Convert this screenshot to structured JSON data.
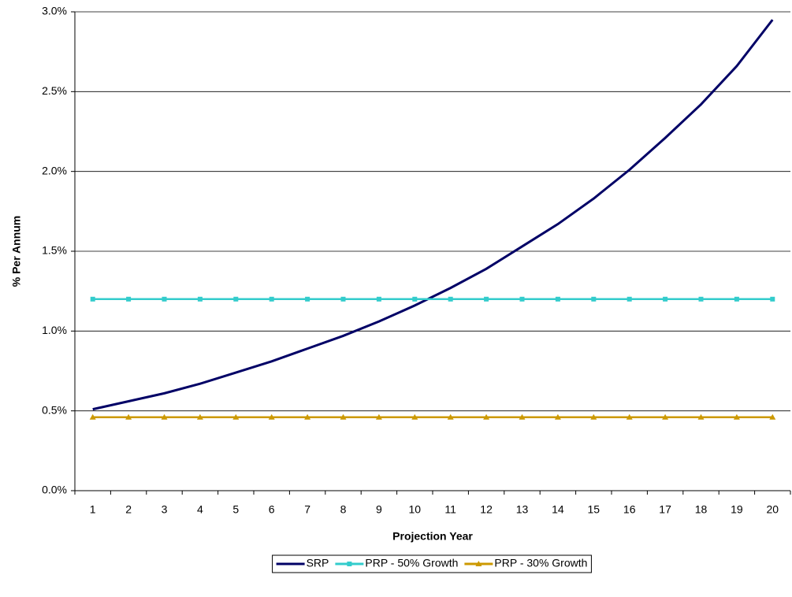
{
  "chart_data": {
    "type": "line",
    "y_label": "% Per Annum",
    "x_label": "Projection Year",
    "categories": [
      "1",
      "2",
      "3",
      "4",
      "5",
      "6",
      "7",
      "8",
      "9",
      "10",
      "11",
      "12",
      "13",
      "14",
      "15",
      "16",
      "17",
      "18",
      "19",
      "20"
    ],
    "series": [
      {
        "name": "SRP",
        "color": "#000066",
        "marker": "none",
        "values": [
          0.51,
          0.56,
          0.61,
          0.67,
          0.74,
          0.81,
          0.89,
          0.97,
          1.06,
          1.16,
          1.27,
          1.39,
          1.53,
          1.67,
          1.83,
          2.01,
          2.21,
          2.42,
          2.66,
          2.95
        ]
      },
      {
        "name": "PRP - 50% Growth",
        "color": "#33cccc",
        "marker": "square",
        "values": [
          1.2,
          1.2,
          1.2,
          1.2,
          1.2,
          1.2,
          1.2,
          1.2,
          1.2,
          1.2,
          1.2,
          1.2,
          1.2,
          1.2,
          1.2,
          1.2,
          1.2,
          1.2,
          1.2,
          1.2
        ]
      },
      {
        "name": "PRP - 30% Growth",
        "color": "#cc9900",
        "marker": "triangle",
        "values": [
          0.46,
          0.46,
          0.46,
          0.46,
          0.46,
          0.46,
          0.46,
          0.46,
          0.46,
          0.46,
          0.46,
          0.46,
          0.46,
          0.46,
          0.46,
          0.46,
          0.46,
          0.46,
          0.46,
          0.46
        ]
      }
    ],
    "ylim": [
      0,
      3
    ],
    "yticks": [
      {
        "value": 0,
        "label": "0.0%"
      },
      {
        "value": 0.5,
        "label": "0.5%"
      },
      {
        "value": 1,
        "label": "1.0%"
      },
      {
        "value": 1.5,
        "label": "1.5%"
      },
      {
        "value": 2,
        "label": "2.0%"
      },
      {
        "value": 2.5,
        "label": "2.5%"
      },
      {
        "value": 3,
        "label": "3.0%"
      }
    ],
    "grid": true,
    "legend": "bottom"
  }
}
